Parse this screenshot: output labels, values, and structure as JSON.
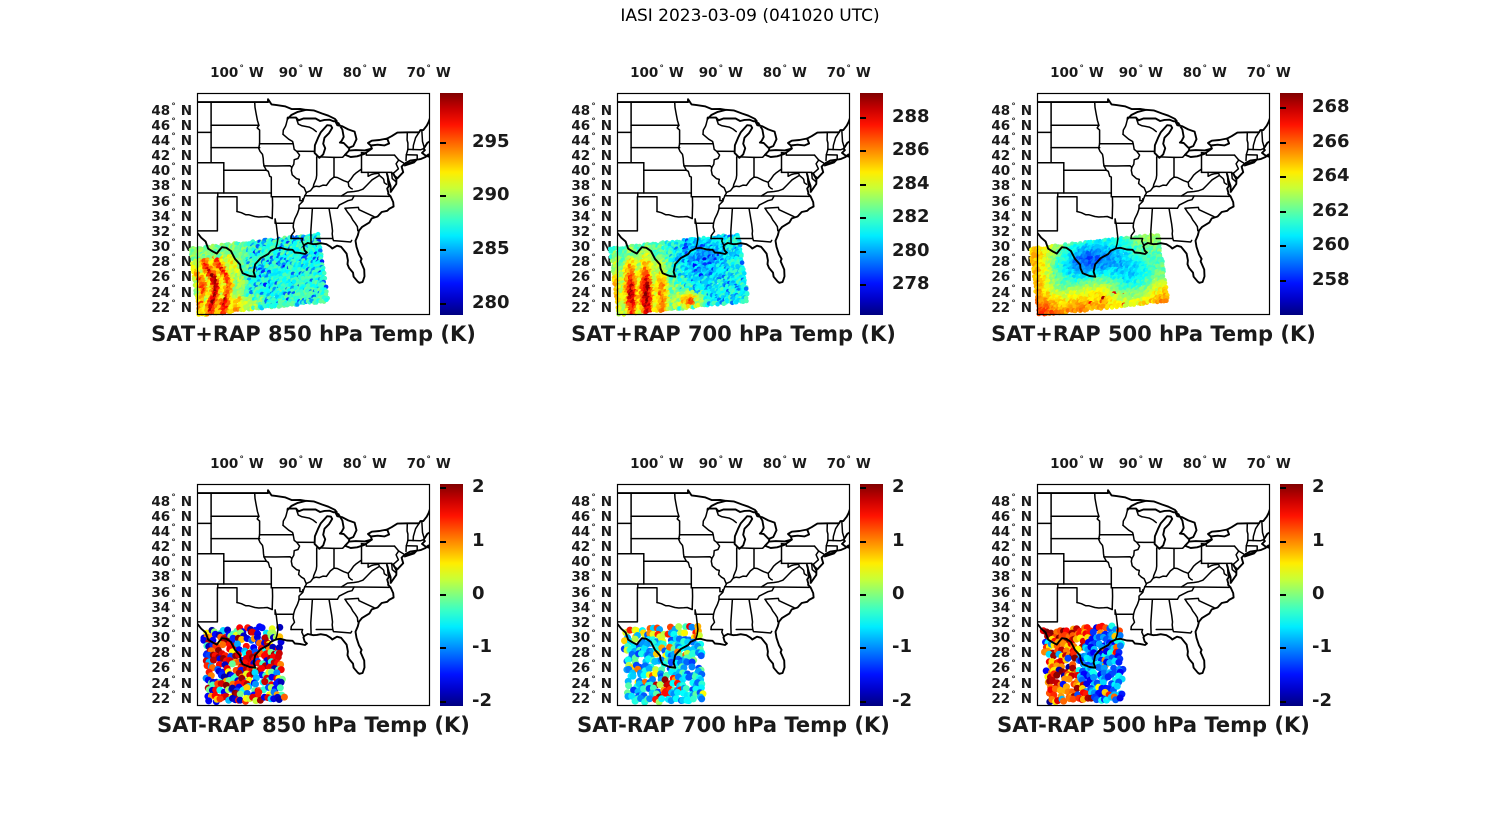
{
  "figure_title": "IASI 2023-03-09 (041020 UTC)",
  "symbols": {
    "degree": "°"
  },
  "chart_data": {
    "type": "scatter",
    "description": "Six geographic scatter panels of IASI satellite retrieved temperature over the central/eastern United States and western Gulf of Mexico. Top row: SAT+RAP analysis temperature at 850/700/500 hPa (jet colormap, Kelvin). Bottom row: SAT-RAP differences at the same levels (jet colormap, -2 to 2 K). Observations cover a swath over Texas and the western Gulf of Mexico.",
    "colormap": "jet",
    "grid": false,
    "legend_position": "right-colorbar",
    "map_extent": {
      "lon_min": -106.25,
      "lon_max": -69.8,
      "lat_min": 20.9,
      "lat_max": 50.2
    },
    "lon_ticks": [
      {
        "label": "100",
        "unit": "W",
        "lon": -100
      },
      {
        "label": "90",
        "unit": "W",
        "lon": -90
      },
      {
        "label": "80",
        "unit": "W",
        "lon": -80
      },
      {
        "label": "70",
        "unit": "W",
        "lon": -70
      }
    ],
    "lat_ticks": [
      {
        "label": "48",
        "unit": "N",
        "lat": 48
      },
      {
        "label": "46",
        "unit": "N",
        "lat": 46
      },
      {
        "label": "44",
        "unit": "N",
        "lat": 44
      },
      {
        "label": "42",
        "unit": "N",
        "lat": 42
      },
      {
        "label": "40",
        "unit": "N",
        "lat": 40
      },
      {
        "label": "38",
        "unit": "N",
        "lat": 38
      },
      {
        "label": "36",
        "unit": "N",
        "lat": 36
      },
      {
        "label": "34",
        "unit": "N",
        "lat": 34
      },
      {
        "label": "32",
        "unit": "N",
        "lat": 32
      },
      {
        "label": "30",
        "unit": "N",
        "lat": 30
      },
      {
        "label": "28",
        "unit": "N",
        "lat": 28
      },
      {
        "label": "26",
        "unit": "N",
        "lat": 26
      },
      {
        "label": "24",
        "unit": "N",
        "lat": 24
      },
      {
        "label": "22",
        "unit": "N",
        "lat": 22
      }
    ],
    "panels": [
      {
        "id": "sat-plus-rap-850",
        "title": "SAT+RAP 850 hPa Temp (K)",
        "row": 0,
        "col": 0,
        "colorbar": {
          "tick_values": [
            295,
            290,
            285,
            280
          ],
          "vmin": 279.0,
          "vmax": 299.6,
          "units": "K"
        },
        "scatter": {
          "pattern": "analysis-850",
          "seed": 11,
          "grid": [
            62,
            26
          ],
          "density": 1.0,
          "dot_radius": 2.3,
          "swath_corners": [
            [
              -107.4,
              29.7
            ],
            [
              -87.2,
              31.6
            ],
            [
              -85.7,
              22.7
            ],
            [
              -106.0,
              20.8
            ]
          ]
        }
      },
      {
        "id": "sat-plus-rap-700",
        "title": "SAT+RAP 700 hPa Temp (K)",
        "row": 0,
        "col": 1,
        "colorbar": {
          "tick_values": [
            288,
            286,
            284,
            282,
            280,
            278
          ],
          "vmin": 276.2,
          "vmax": 289.5,
          "units": "K"
        },
        "scatter": {
          "pattern": "analysis-700",
          "seed": 22,
          "grid": [
            62,
            26
          ],
          "density": 1.0,
          "dot_radius": 2.3,
          "swath_corners": [
            [
              -107.4,
              29.7
            ],
            [
              -87.2,
              31.6
            ],
            [
              -85.7,
              22.7
            ],
            [
              -106.0,
              20.8
            ]
          ]
        }
      },
      {
        "id": "sat-plus-rap-500",
        "title": "SAT+RAP 500 hPa Temp (K)",
        "row": 0,
        "col": 2,
        "colorbar": {
          "tick_values": [
            268,
            266,
            264,
            262,
            260,
            258
          ],
          "vmin": 256.0,
          "vmax": 268.9,
          "units": "K"
        },
        "scatter": {
          "pattern": "analysis-500",
          "seed": 33,
          "grid": [
            62,
            26
          ],
          "density": 1.0,
          "dot_radius": 2.3,
          "swath_corners": [
            [
              -107.4,
              29.7
            ],
            [
              -87.2,
              31.6
            ],
            [
              -85.7,
              22.7
            ],
            [
              -106.0,
              20.8
            ]
          ]
        }
      },
      {
        "id": "sat-minus-rap-850",
        "title": "SAT-RAP 850 hPa Temp (K)",
        "row": 1,
        "col": 0,
        "colorbar": {
          "tick_values": [
            2,
            1,
            0,
            -1,
            -2
          ],
          "vmin": -2.08,
          "vmax": 2.08,
          "units": "K"
        },
        "scatter": {
          "pattern": "diff-850",
          "seed": 44,
          "grid": [
            24,
            15
          ],
          "density": 0.82,
          "dot_radius": 3.5,
          "swath_corners": [
            [
              -105.3,
              31.0
            ],
            [
              -93.2,
              31.6
            ],
            [
              -92.5,
              21.6
            ],
            [
              -104.7,
              21.2
            ]
          ]
        }
      },
      {
        "id": "sat-minus-rap-700",
        "title": "SAT-RAP 700 hPa Temp (K)",
        "row": 1,
        "col": 1,
        "colorbar": {
          "tick_values": [
            2,
            1,
            0,
            -1,
            -2
          ],
          "vmin": -2.08,
          "vmax": 2.08,
          "units": "K"
        },
        "scatter": {
          "pattern": "diff-700",
          "seed": 55,
          "grid": [
            24,
            15
          ],
          "density": 0.82,
          "dot_radius": 3.5,
          "swath_corners": [
            [
              -105.3,
              31.0
            ],
            [
              -93.2,
              31.6
            ],
            [
              -92.5,
              21.6
            ],
            [
              -104.7,
              21.2
            ]
          ]
        }
      },
      {
        "id": "sat-minus-rap-500",
        "title": "SAT-RAP 500 hPa Temp (K)",
        "row": 1,
        "col": 2,
        "colorbar": {
          "tick_values": [
            2,
            1,
            0,
            -1,
            -2
          ],
          "vmin": -2.08,
          "vmax": 2.08,
          "units": "K"
        },
        "scatter": {
          "pattern": "diff-500",
          "seed": 66,
          "grid": [
            24,
            15
          ],
          "density": 0.82,
          "dot_radius": 3.5,
          "swath_corners": [
            [
              -105.3,
              31.0
            ],
            [
              -93.2,
              31.6
            ],
            [
              -92.5,
              21.6
            ],
            [
              -104.7,
              21.2
            ]
          ]
        }
      }
    ]
  }
}
